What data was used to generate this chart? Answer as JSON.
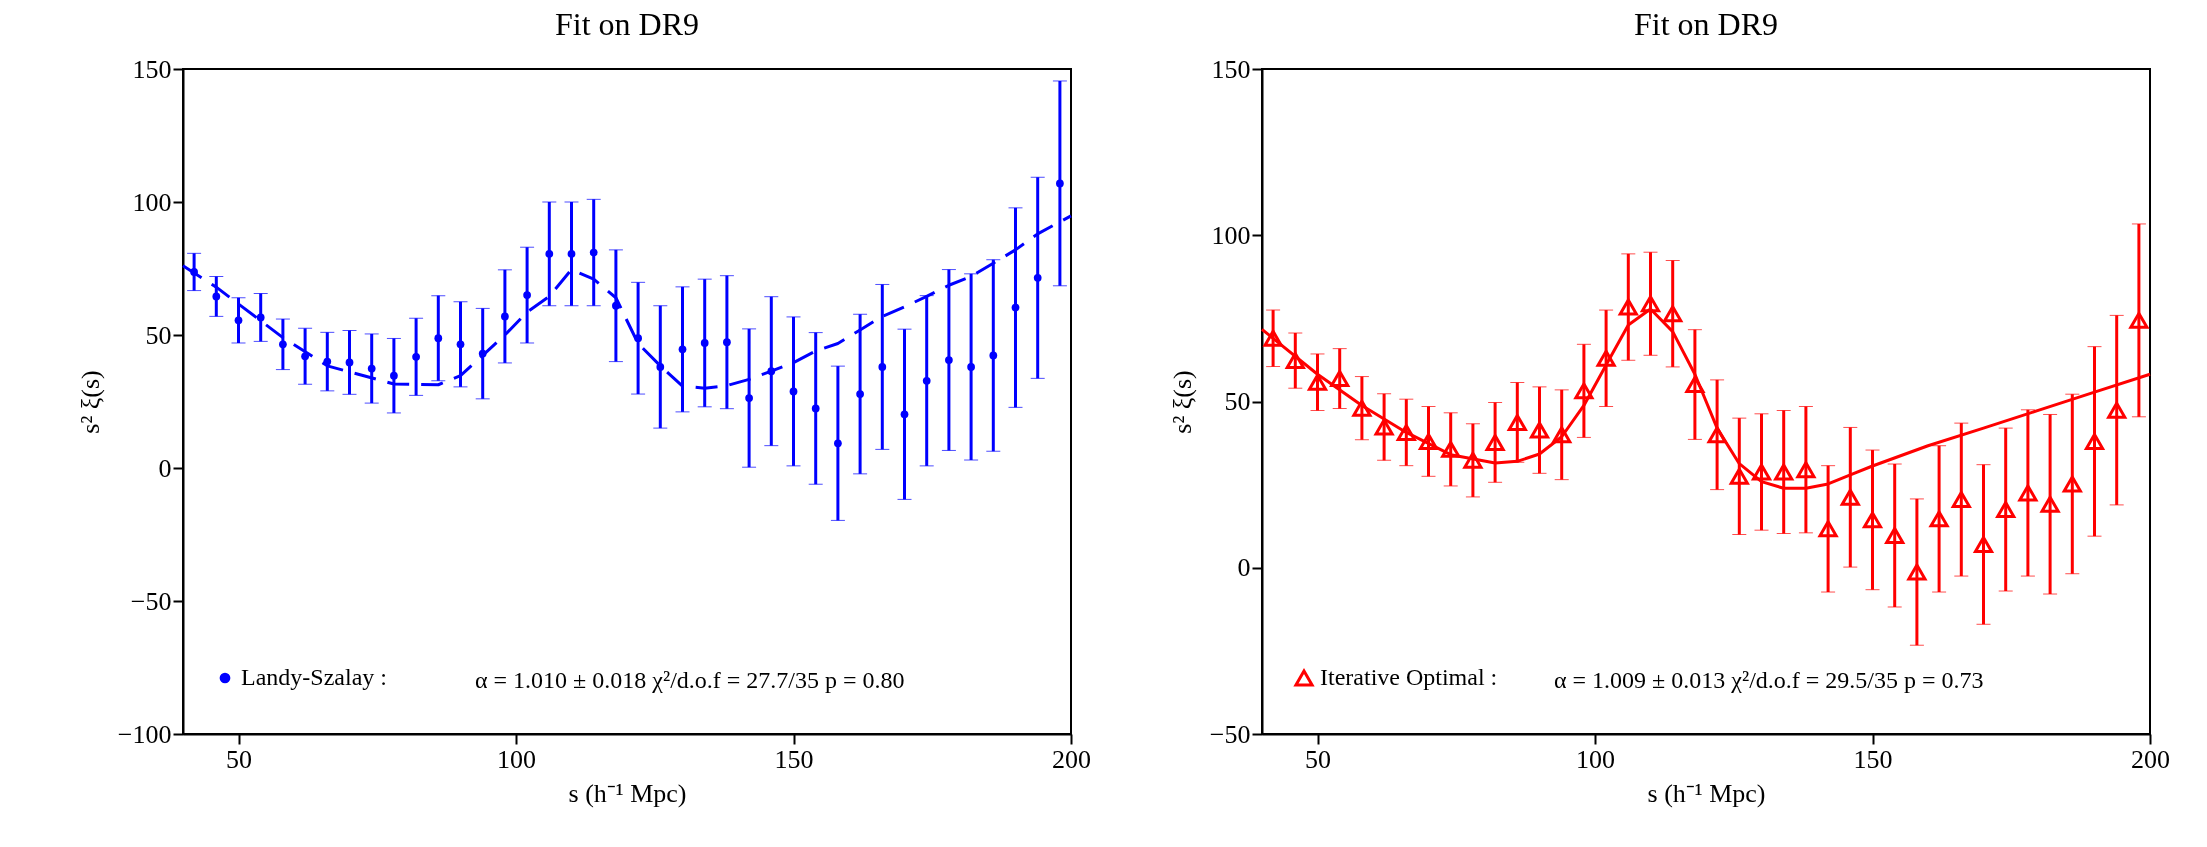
{
  "chart_data": [
    {
      "type": "scatter",
      "title": "Fit on DR9",
      "xlabel": "s (h⁻¹ Mpc)",
      "ylabel": "s² ξ(s)",
      "xlim": [
        40,
        200
      ],
      "xticks": [
        50,
        100,
        150,
        200
      ],
      "ylim": [
        -100,
        150
      ],
      "yticks": [
        -100,
        -50,
        0,
        50,
        100,
        150
      ],
      "legend": "bottom left",
      "annotations": [
        "α = 1.010 ± 0.018   χ²/d.o.f = 27.7/35   p = 0.80"
      ],
      "x": [
        42,
        46,
        50,
        54,
        58,
        62,
        66,
        70,
        74,
        78,
        82,
        86,
        90,
        94,
        98,
        102,
        106,
        110,
        114,
        118,
        122,
        126,
        130,
        134,
        138,
        142,
        146,
        150,
        154,
        158,
        162,
        166,
        170,
        174,
        178,
        182,
        186,
        190,
        194,
        198
      ],
      "series": [
        {
          "name": "Landy-Szalay :",
          "color": "#0000ff",
          "marker": "circle",
          "values": [
            73.7,
            64.5,
            55.5,
            56.6,
            46.5,
            42,
            40,
            39.7,
            37.4,
            34.7,
            41.8,
            48.8,
            46.5,
            43,
            57,
            65,
            80.5,
            80.5,
            81,
            61,
            48.8,
            38,
            44.6,
            47,
            47.3,
            26.3,
            36.4,
            28.8,
            22.4,
            9.3,
            27.8,
            38,
            20.2,
            32.8,
            40.6,
            38,
            42.3,
            60.3,
            71.5,
            107
          ],
          "errors": [
            7,
            7.5,
            8.5,
            9,
            9.5,
            10.5,
            11,
            12,
            13,
            14,
            14.5,
            16,
            16,
            17,
            17.5,
            18,
            19.5,
            19.5,
            20,
            21,
            21,
            23,
            23.5,
            24,
            25,
            26,
            28,
            28,
            28.5,
            29,
            30,
            31,
            32,
            32,
            34,
            35,
            36,
            37.5,
            37.8,
            38.5
          ]
        },
        {
          "type": "line",
          "line_style": "dashed",
          "marker": "none",
          "color": "#0000ff",
          "x": [
            40,
            46,
            58,
            66,
            78,
            86,
            90,
            98,
            102,
            106,
            110,
            114,
            118,
            122,
            126,
            130,
            134,
            138,
            142,
            146,
            150,
            154,
            158,
            162,
            166,
            170,
            174,
            178,
            182,
            186,
            190,
            194,
            200
          ],
          "values": [
            76,
            68,
            49,
            38.4,
            31.6,
            31.3,
            34.7,
            50,
            58.6,
            64.5,
            74.6,
            71,
            64,
            46.8,
            38.4,
            30.8,
            30,
            31,
            33.3,
            36.4,
            39.6,
            44,
            46.8,
            51.9,
            57,
            60.6,
            64.5,
            68.7,
            72,
            77,
            82,
            88,
            94.8
          ]
        }
      ]
    },
    {
      "type": "scatter",
      "title": "Fit on DR9",
      "xlabel": "s (h⁻¹ Mpc)",
      "ylabel": "s² ξ(s)",
      "xlim": [
        40,
        200
      ],
      "xticks": [
        50,
        100,
        150,
        200
      ],
      "ylim": [
        -50,
        150
      ],
      "yticks": [
        -50,
        0,
        50,
        100,
        150
      ],
      "legend": "bottom left",
      "annotations": [
        "α = 1.009 ± 0.013   χ²/d.o.f = 29.5/35   p = 0.73"
      ],
      "x": [
        42,
        46,
        50,
        54,
        58,
        62,
        66,
        70,
        74,
        78,
        82,
        86,
        90,
        94,
        98,
        102,
        106,
        110,
        114,
        118,
        122,
        126,
        130,
        134,
        138,
        142,
        146,
        150,
        154,
        158,
        162,
        166,
        170,
        174,
        178,
        182,
        186,
        190,
        194,
        198
      ],
      "series": [
        {
          "name": "Iterative Optimal :",
          "color": "#ff0000",
          "marker": "triangle",
          "values": [
            69,
            62.3,
            55.8,
            56.9,
            48,
            42.3,
            40.7,
            38,
            35.6,
            32.3,
            37.7,
            43.7,
            41.4,
            40,
            53.2,
            63,
            78.4,
            79.4,
            76.4,
            55.1,
            40,
            27.5,
            28.8,
            28.8,
            29.5,
            11.7,
            21.2,
            14.4,
            9.7,
            -1.3,
            14.7,
            20.5,
            7,
            17.5,
            22.5,
            19.1,
            25.2,
            38,
            47.4,
            74.4
          ],
          "errors": [
            8.5,
            8.3,
            8.5,
            9,
            9.5,
            10,
            10,
            10.5,
            11,
            11,
            12,
            12,
            13,
            13.5,
            14,
            14.5,
            16,
            15.5,
            16,
            16.5,
            16.5,
            17.5,
            17.5,
            18.5,
            19,
            19,
            21,
            21,
            21.5,
            22,
            22,
            23,
            24,
            24.5,
            25,
            27,
            27,
            28.5,
            28.5,
            29
          ]
        },
        {
          "type": "line",
          "line_style": "solid",
          "marker": "none",
          "color": "#ff0000",
          "x": [
            40,
            50,
            58,
            66,
            74,
            82,
            86,
            90,
            94,
            98,
            102,
            106,
            110,
            114,
            118,
            122,
            126,
            130,
            134,
            138,
            142,
            146,
            150,
            160,
            170,
            180,
            190,
            200
          ],
          "values": [
            71.7,
            58.2,
            48.8,
            40.7,
            34,
            31.5,
            32,
            34.2,
            39.4,
            48.8,
            61,
            73,
            77.8,
            71,
            58.2,
            42,
            31.3,
            25.9,
            23.9,
            23.9,
            25.2,
            27.9,
            30.6,
            36.7,
            42,
            47.4,
            52.8,
            58.2
          ]
        }
      ]
    }
  ]
}
